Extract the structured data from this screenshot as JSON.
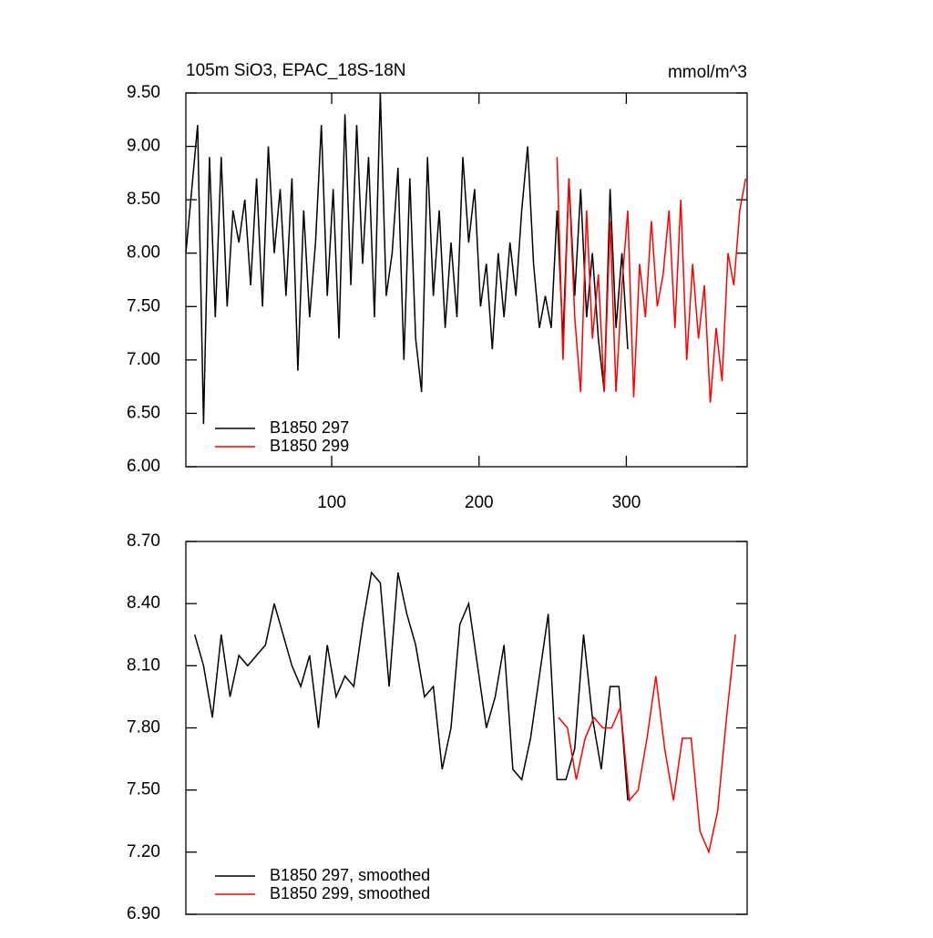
{
  "chart_data": [
    {
      "type": "line",
      "title": "105m SiO3, EPAC_18S-18N",
      "units": "mmol/m^3",
      "xlim": [
        1,
        382
      ],
      "xticks": [
        100,
        200,
        300
      ],
      "ylim": [
        6.0,
        9.5
      ],
      "yticks": [
        {
          "value": 6.0,
          "label": "6.00"
        },
        {
          "value": 6.5,
          "label": "6.50"
        },
        {
          "value": 7.0,
          "label": "7.00"
        },
        {
          "value": 7.5,
          "label": "7.50"
        },
        {
          "value": 8.0,
          "label": "8.00"
        },
        {
          "value": 8.5,
          "label": "8.50"
        },
        {
          "value": 9.0,
          "label": "9.00"
        },
        {
          "value": 9.5,
          "label": "9.50"
        }
      ],
      "series": [
        {
          "name": "B1850 297",
          "color": "#000000",
          "x": [
            1,
            5,
            9,
            13,
            17,
            21,
            25,
            29,
            33,
            37,
            41,
            45,
            49,
            53,
            57,
            61,
            65,
            69,
            73,
            77,
            81,
            85,
            89,
            93,
            97,
            101,
            105,
            109,
            113,
            117,
            121,
            125,
            129,
            133,
            137,
            141,
            145,
            149,
            153,
            157,
            161,
            165,
            169,
            173,
            177,
            181,
            185,
            189,
            193,
            197,
            201,
            205,
            209,
            213,
            217,
            221,
            225,
            229,
            233,
            237,
            241,
            245,
            249,
            253,
            257,
            261,
            265,
            269,
            273,
            277,
            281,
            285,
            289,
            293,
            297,
            301
          ],
          "values": [
            8.0,
            8.6,
            9.2,
            6.4,
            8.9,
            7.4,
            8.9,
            7.5,
            8.4,
            8.1,
            8.5,
            7.7,
            8.7,
            7.5,
            9.0,
            8.0,
            8.6,
            7.6,
            8.7,
            6.9,
            8.4,
            7.4,
            8.1,
            9.2,
            7.6,
            8.6,
            7.2,
            9.3,
            7.7,
            9.2,
            7.9,
            8.9,
            7.4,
            9.5,
            7.6,
            8.0,
            8.8,
            7.0,
            8.7,
            7.2,
            6.7,
            8.9,
            7.6,
            8.4,
            7.3,
            8.1,
            7.4,
            8.9,
            8.1,
            8.6,
            7.5,
            7.9,
            7.1,
            8.0,
            7.4,
            8.1,
            7.6,
            8.4,
            9.0,
            7.9,
            7.3,
            7.6,
            7.3,
            8.4,
            7.2,
            8.7,
            7.6,
            8.6,
            7.4,
            8.0,
            7.2,
            6.7,
            8.6,
            7.3,
            8.0,
            7.1
          ]
        },
        {
          "name": "B1850 299",
          "color": "#ff0000",
          "x": [
            253,
            257,
            261,
            265,
            269,
            273,
            277,
            281,
            285,
            289,
            293,
            297,
            301,
            305,
            309,
            313,
            317,
            321,
            325,
            329,
            333,
            337,
            341,
            345,
            349,
            353,
            357,
            361,
            365,
            369,
            373,
            377,
            381
          ],
          "values": [
            8.9,
            7.0,
            8.7,
            7.4,
            6.7,
            8.4,
            7.2,
            7.8,
            6.7,
            8.3,
            6.7,
            7.7,
            8.4,
            6.65,
            7.9,
            7.4,
            8.3,
            7.5,
            7.8,
            8.4,
            7.3,
            8.5,
            7.0,
            7.9,
            7.2,
            7.7,
            6.6,
            7.3,
            6.8,
            8.0,
            7.7,
            8.4,
            8.7
          ]
        }
      ]
    },
    {
      "type": "line",
      "xlim": [
        1,
        382
      ],
      "ylim": [
        6.9,
        8.7
      ],
      "yticks": [
        {
          "value": 6.9,
          "label": "6.90"
        },
        {
          "value": 7.2,
          "label": "7.20"
        },
        {
          "value": 7.5,
          "label": "7.50"
        },
        {
          "value": 7.8,
          "label": "7.80"
        },
        {
          "value": 8.1,
          "label": "8.10"
        },
        {
          "value": 8.4,
          "label": "8.40"
        },
        {
          "value": 8.7,
          "label": "8.70"
        }
      ],
      "series": [
        {
          "name": "B1850 297, smoothed",
          "color": "#000000",
          "x": [
            7,
            13,
            19,
            25,
            31,
            37,
            43,
            49,
            55,
            61,
            67,
            73,
            79,
            85,
            91,
            97,
            103,
            109,
            115,
            121,
            127,
            133,
            139,
            145,
            151,
            157,
            163,
            169,
            175,
            181,
            187,
            193,
            199,
            205,
            211,
            217,
            223,
            229,
            235,
            241,
            247,
            253,
            259,
            265,
            271,
            277,
            283,
            289,
            295,
            301
          ],
          "values": [
            8.25,
            8.1,
            7.85,
            8.25,
            7.95,
            8.15,
            8.1,
            8.15,
            8.2,
            8.4,
            8.25,
            8.1,
            8.0,
            8.15,
            7.8,
            8.2,
            7.95,
            8.05,
            8.0,
            8.3,
            8.55,
            8.5,
            8.0,
            8.55,
            8.35,
            8.2,
            7.95,
            8.0,
            7.6,
            7.8,
            8.3,
            8.4,
            8.1,
            7.8,
            7.95,
            8.2,
            7.6,
            7.55,
            7.75,
            8.05,
            8.35,
            7.55,
            7.55,
            7.7,
            8.25,
            7.85,
            7.6,
            8.0,
            8.0,
            7.45
          ]
        },
        {
          "name": "B1850 299, smoothed",
          "color": "#ff0000",
          "x": [
            254,
            260,
            266,
            272,
            278,
            284,
            290,
            296,
            302,
            308,
            314,
            320,
            326,
            332,
            338,
            344,
            350,
            356,
            362,
            368,
            374
          ],
          "values": [
            7.85,
            7.8,
            7.55,
            7.75,
            7.85,
            7.8,
            7.8,
            7.9,
            7.45,
            7.5,
            7.75,
            8.05,
            7.7,
            7.45,
            7.75,
            7.75,
            7.3,
            7.2,
            7.4,
            7.85,
            8.25
          ]
        }
      ]
    }
  ]
}
